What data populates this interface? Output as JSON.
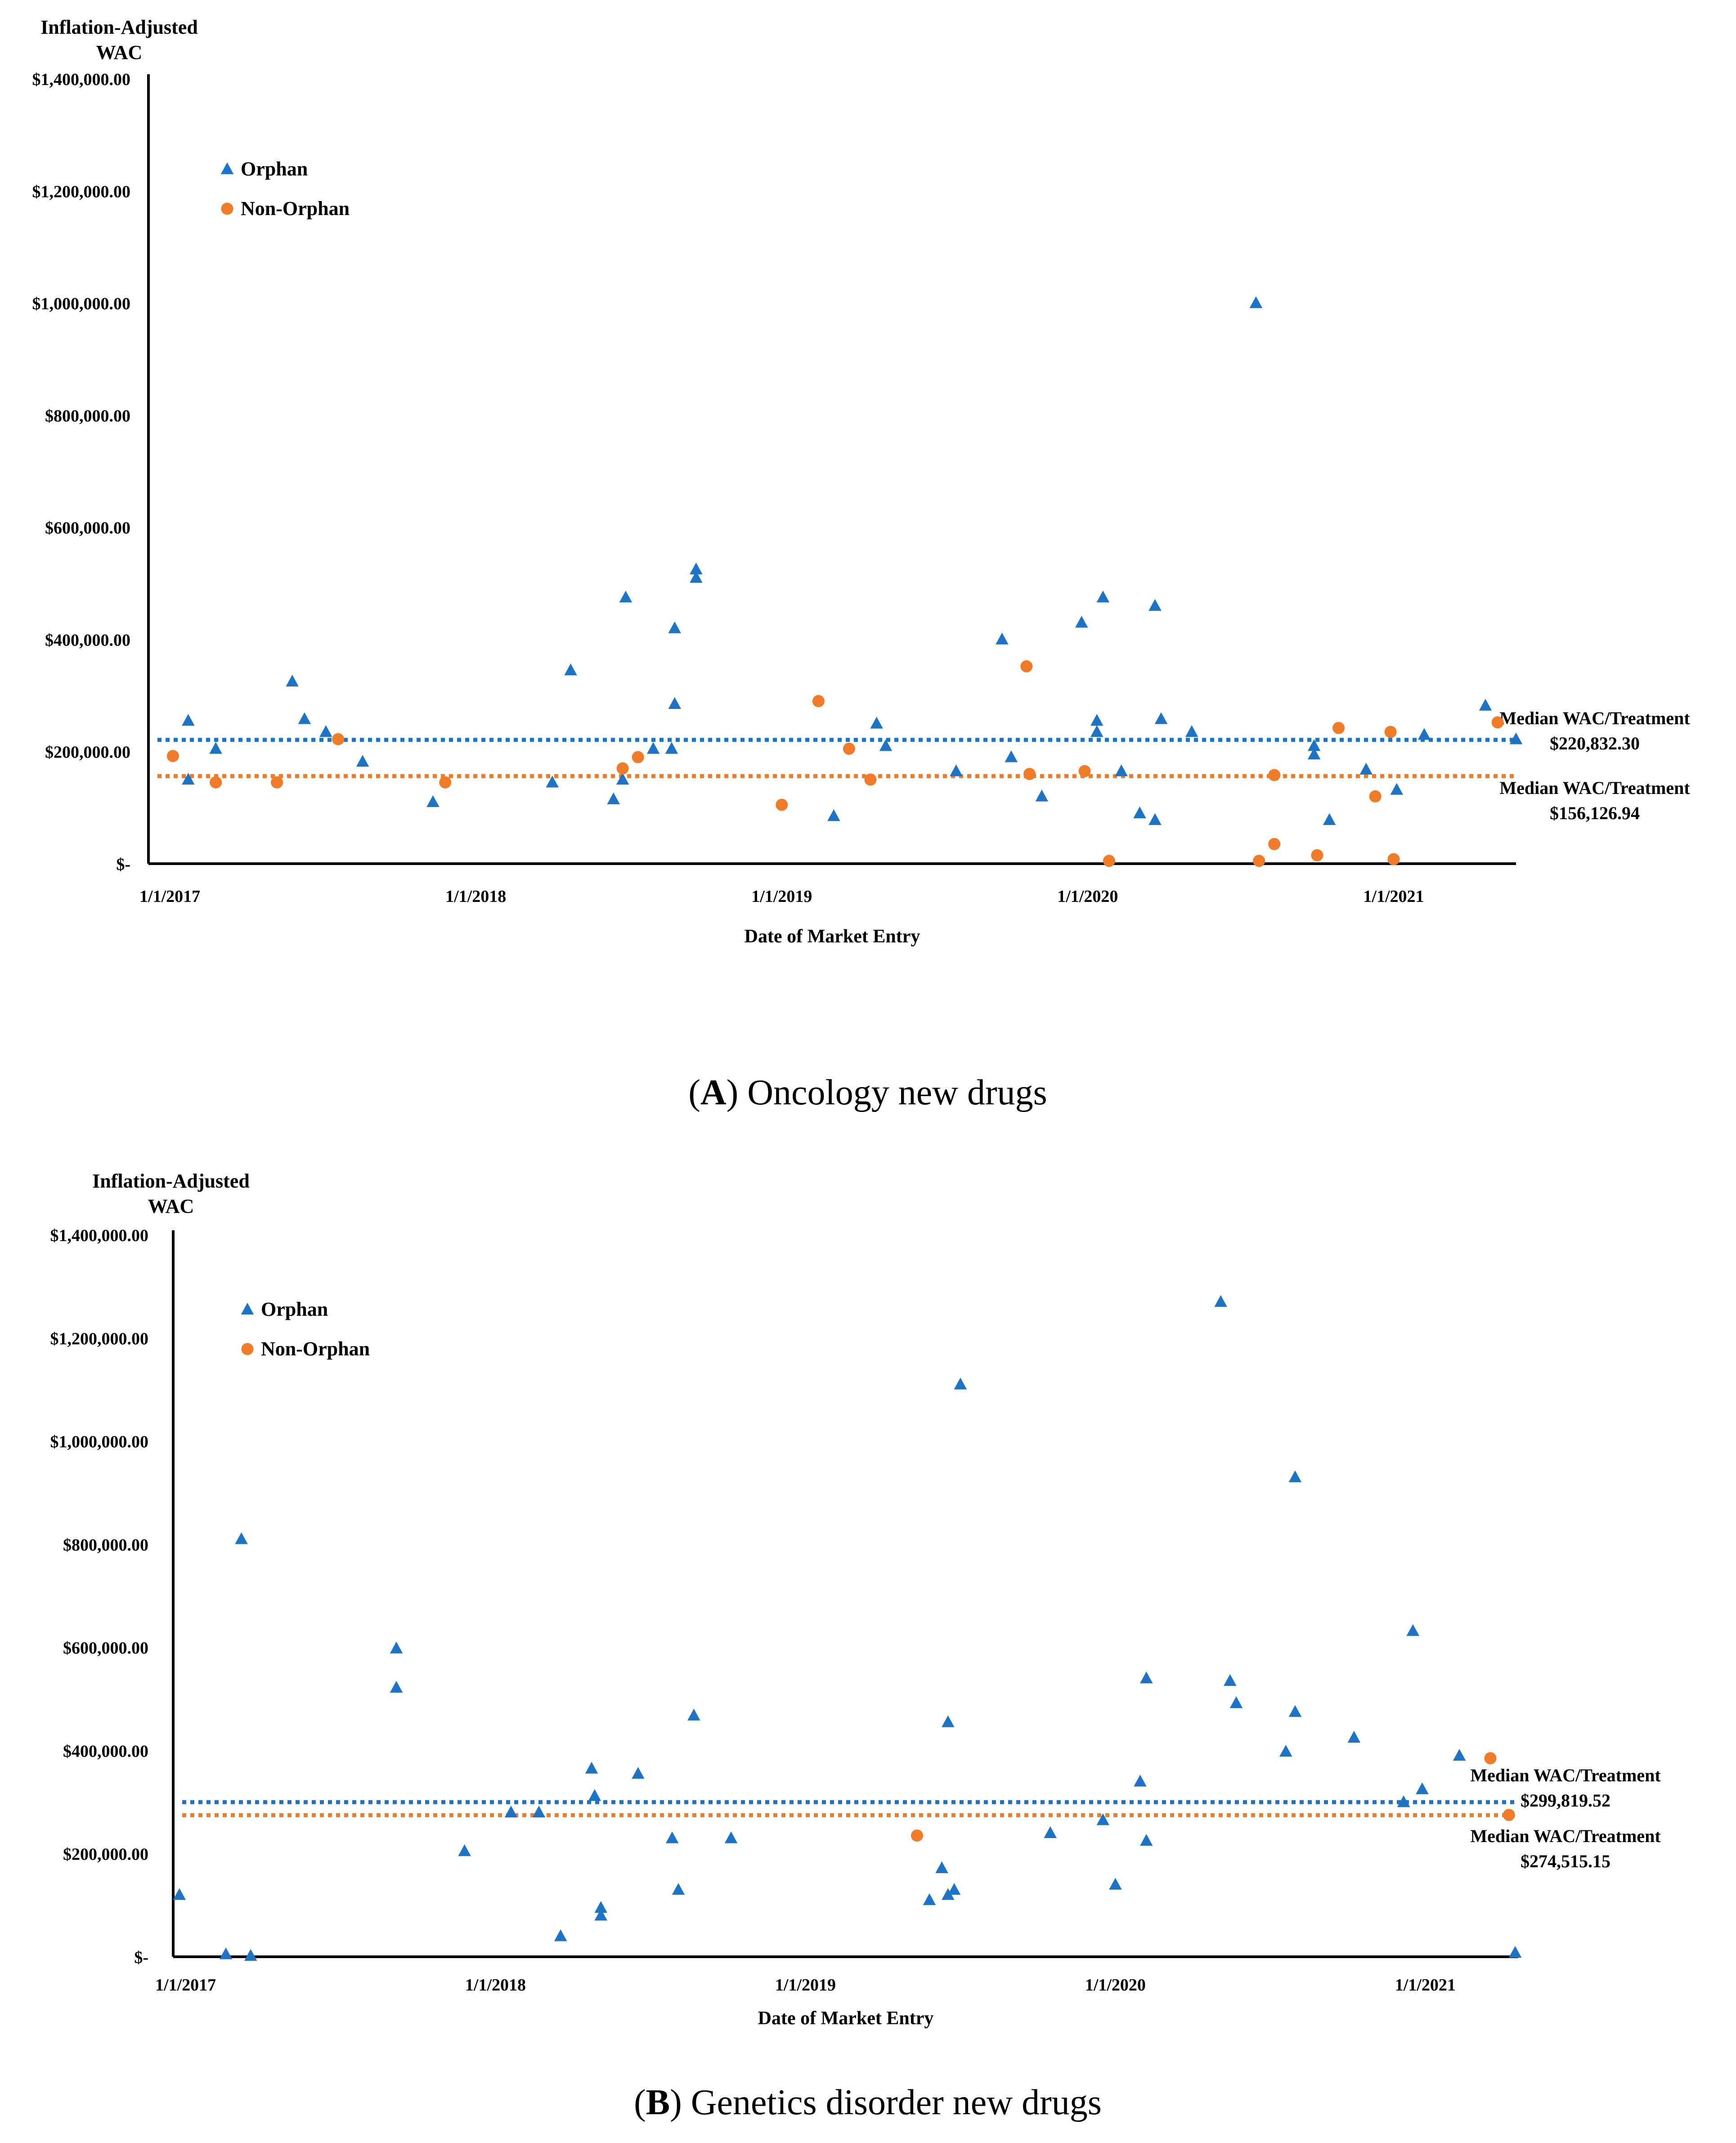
{
  "colors": {
    "orphan": "#1f73c4",
    "non_orphan": "#f07c2a",
    "axis": "#000000",
    "text": "#000000"
  },
  "chart_data": [
    {
      "type": "scatter",
      "panel": "A",
      "caption": {
        "letter": "A",
        "text": "Oncology new drugs"
      },
      "title": "",
      "ylabel": "Inflation-Adjusted\nWAC",
      "xlabel": "Date of Market Entry",
      "ylim": [
        0,
        1400000
      ],
      "yticks": [
        "$-",
        "$200,000.00",
        "$400,000.00",
        "$600,000.00",
        "$800,000.00",
        "$1,000,000.00",
        "$1,200,000.00",
        "$1,400,000.00"
      ],
      "xlim": [
        2016.93,
        2021.4
      ],
      "xticks": [
        {
          "label": "1/1/2017",
          "x": 2017
        },
        {
          "label": "1/1/2018",
          "x": 2018
        },
        {
          "label": "1/1/2019",
          "x": 2019
        },
        {
          "label": "1/1/2020",
          "x": 2020
        },
        {
          "label": "1/1/2021",
          "x": 2021
        }
      ],
      "legend": {
        "position": "top-left",
        "items": [
          {
            "label": "Orphan",
            "marker": "triangle"
          },
          {
            "label": "Non-Orphan",
            "marker": "circle"
          }
        ]
      },
      "medians": [
        {
          "series": "Orphan",
          "value": 220832.3,
          "label": "Median WAC/Treatment",
          "value_label": "$220,832.30"
        },
        {
          "series": "Non-Orphan",
          "value": 156126.94,
          "label": "Median WAC/Treatment",
          "value_label": "$156,126.94"
        }
      ],
      "series": [
        {
          "name": "Orphan",
          "marker": "triangle",
          "points": [
            [
              2017.06,
              255000
            ],
            [
              2017.06,
              150000
            ],
            [
              2017.15,
              205000
            ],
            [
              2017.4,
              325000
            ],
            [
              2017.44,
              258000
            ],
            [
              2017.51,
              235000
            ],
            [
              2017.63,
              182000
            ],
            [
              2017.86,
              110000
            ],
            [
              2018.25,
              145000
            ],
            [
              2018.31,
              345000
            ],
            [
              2018.45,
              115000
            ],
            [
              2018.48,
              150000
            ],
            [
              2018.49,
              475000
            ],
            [
              2018.58,
              205000
            ],
            [
              2018.64,
              205000
            ],
            [
              2018.65,
              285000
            ],
            [
              2018.65,
              420000
            ],
            [
              2018.72,
              510000
            ],
            [
              2018.72,
              525000
            ],
            [
              2019.17,
              85000
            ],
            [
              2019.31,
              250000
            ],
            [
              2019.34,
              210000
            ],
            [
              2019.57,
              165000
            ],
            [
              2019.72,
              400000
            ],
            [
              2019.75,
              190000
            ],
            [
              2019.85,
              120000
            ],
            [
              2019.98,
              430000
            ],
            [
              2020.03,
              235000
            ],
            [
              2020.03,
              255000
            ],
            [
              2020.05,
              475000
            ],
            [
              2020.11,
              165000
            ],
            [
              2020.17,
              90000
            ],
            [
              2020.22,
              78000
            ],
            [
              2020.22,
              460000
            ],
            [
              2020.24,
              258000
            ],
            [
              2020.34,
              235000
            ],
            [
              2020.55,
              1000000
            ],
            [
              2020.74,
              210000
            ],
            [
              2020.74,
              195000
            ],
            [
              2020.79,
              78000
            ],
            [
              2020.91,
              168000
            ],
            [
              2021.01,
              132000
            ],
            [
              2021.1,
              230000
            ],
            [
              2021.3,
              282000
            ],
            [
              2021.4,
              222000
            ]
          ]
        },
        {
          "name": "Non-Orphan",
          "marker": "circle",
          "points": [
            [
              2017.01,
              192000
            ],
            [
              2017.15,
              145000
            ],
            [
              2017.35,
              145000
            ],
            [
              2017.55,
              222000
            ],
            [
              2017.9,
              145000
            ],
            [
              2018.48,
              170000
            ],
            [
              2018.53,
              190000
            ],
            [
              2019.0,
              105000
            ],
            [
              2019.12,
              290000
            ],
            [
              2019.22,
              205000
            ],
            [
              2019.29,
              150000
            ],
            [
              2019.8,
              352000
            ],
            [
              2019.81,
              160000
            ],
            [
              2019.99,
              165000
            ],
            [
              2020.07,
              5000
            ],
            [
              2020.56,
              5000
            ],
            [
              2020.61,
              158000
            ],
            [
              2020.61,
              35000
            ],
            [
              2020.75,
              15000
            ],
            [
              2020.82,
              242000
            ],
            [
              2020.94,
              120000
            ],
            [
              2020.99,
              235000
            ],
            [
              2021.0,
              8000
            ],
            [
              2021.34,
              252000
            ]
          ]
        }
      ]
    },
    {
      "type": "scatter",
      "panel": "B",
      "caption": {
        "letter": "B",
        "text": "Genetics disorder new drugs"
      },
      "title": "",
      "ylabel": "Inflation-Adjusted\nWAC",
      "xlabel": "Date of Market Entry",
      "ylim": [
        0,
        1400000
      ],
      "yticks": [
        "$-",
        "$200,000.00",
        "$400,000.00",
        "$600,000.00",
        "$800,000.00",
        "$1,000,000.00",
        "$1,200,000.00",
        "$1,400,000.00"
      ],
      "xlim": [
        2016.96,
        2021.3
      ],
      "xticks": [
        {
          "label": "1/1/2017",
          "x": 2017
        },
        {
          "label": "1/1/2018",
          "x": 2018
        },
        {
          "label": "1/1/2019",
          "x": 2019
        },
        {
          "label": "1/1/2020",
          "x": 2020
        },
        {
          "label": "1/1/2021",
          "x": 2021
        }
      ],
      "legend": {
        "position": "top-left",
        "items": [
          {
            "label": "Orphan",
            "marker": "triangle"
          },
          {
            "label": "Non-Orphan",
            "marker": "circle"
          }
        ]
      },
      "medians": [
        {
          "series": "Orphan",
          "value": 299819.52,
          "label": "Median WAC/Treatment",
          "value_label": "$299,819.52"
        },
        {
          "series": "Non-Orphan",
          "value": 274515.15,
          "label": "Median WAC/Treatment",
          "value_label": "$274,515.15"
        }
      ],
      "series": [
        {
          "name": "Orphan",
          "marker": "triangle",
          "points": [
            [
              2016.98,
              120000
            ],
            [
              2017.13,
              5000
            ],
            [
              2017.18,
              810000
            ],
            [
              2017.21,
              2000
            ],
            [
              2017.68,
              598000
            ],
            [
              2017.68,
              522000
            ],
            [
              2017.9,
              205000
            ],
            [
              2018.05,
              280000
            ],
            [
              2018.14,
              280000
            ],
            [
              2018.21,
              40000
            ],
            [
              2018.31,
              365000
            ],
            [
              2018.32,
              312000
            ],
            [
              2018.34,
              95000
            ],
            [
              2018.34,
              80000
            ],
            [
              2018.46,
              355000
            ],
            [
              2018.57,
              230000
            ],
            [
              2018.59,
              130000
            ],
            [
              2018.64,
              468000
            ],
            [
              2018.76,
              230000
            ],
            [
              2019.4,
              110000
            ],
            [
              2019.44,
              172000
            ],
            [
              2019.46,
              120000
            ],
            [
              2019.46,
              455000
            ],
            [
              2019.48,
              130000
            ],
            [
              2019.5,
              1110000
            ],
            [
              2019.79,
              240000
            ],
            [
              2019.96,
              265000
            ],
            [
              2020.0,
              140000
            ],
            [
              2020.08,
              340000
            ],
            [
              2020.1,
              540000
            ],
            [
              2020.1,
              225000
            ],
            [
              2020.34,
              1270000
            ],
            [
              2020.37,
              535000
            ],
            [
              2020.39,
              492000
            ],
            [
              2020.55,
              398000
            ],
            [
              2020.58,
              475000
            ],
            [
              2020.58,
              930000
            ],
            [
              2020.77,
              425000
            ],
            [
              2020.93,
              300000
            ],
            [
              2020.96,
              632000
            ],
            [
              2020.99,
              325000
            ],
            [
              2021.11,
              390000
            ],
            [
              2021.29,
              8000
            ]
          ]
        },
        {
          "name": "Non-Orphan",
          "marker": "circle",
          "points": [
            [
              2019.36,
              235000
            ],
            [
              2021.21,
              385000
            ],
            [
              2021.27,
              275000
            ]
          ]
        }
      ]
    }
  ]
}
